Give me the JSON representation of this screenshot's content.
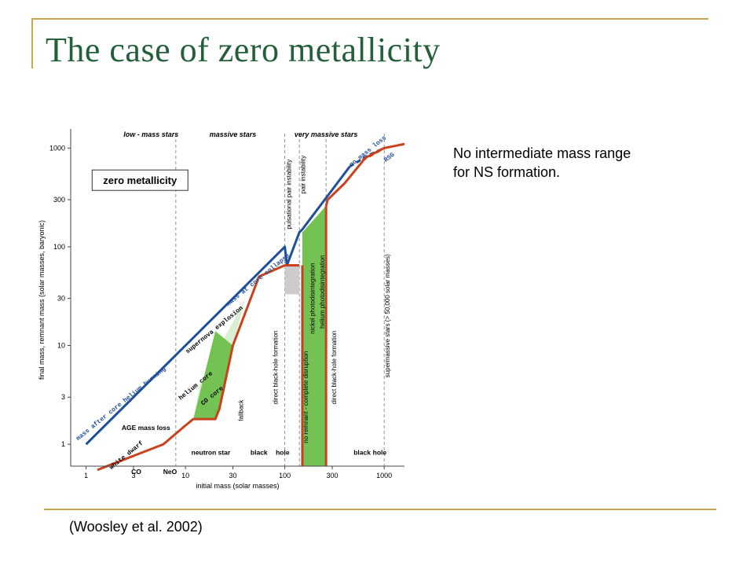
{
  "slide": {
    "title": "The case of zero metallicity",
    "note": [
      "No intermediate mass range",
      "for NS formation."
    ],
    "citation": "(Woosley et al. 2002)"
  },
  "colors": {
    "title": "#23603a",
    "rule": "#c7a84f",
    "blue_curve": "#1f4e9a",
    "red_curve": "#c8421d",
    "green_fill": "#6dbf4b",
    "gray_box": "#cccccc"
  },
  "chart_data": {
    "type": "line",
    "title": "",
    "xlabel": "initial mass (solar masses)",
    "ylabel": "final mass, remnant mass (solar masses, baryonic)",
    "xscale": "log",
    "yscale": "log",
    "xlim": [
      0.7,
      1600
    ],
    "ylim": [
      0.6,
      1400
    ],
    "xticks": [
      1,
      3,
      10,
      30,
      100,
      300,
      1000
    ],
    "yticks": [
      1,
      3,
      10,
      30,
      100,
      300,
      1000
    ],
    "box_label": "zero metallicity",
    "top_labels": [
      {
        "text": "low - mass stars",
        "x": 4.5
      },
      {
        "text": "massive stars",
        "x": 30
      },
      {
        "text": "very massive stars",
        "x": 260
      }
    ],
    "vertical_lines": [
      8,
      100,
      140,
      260,
      1000
    ],
    "series": [
      {
        "key": "final_mass",
        "color": "#1f4e9a",
        "x": [
          1,
          8,
          90,
          100,
          105,
          140,
          150,
          450
        ],
        "y": [
          1,
          8,
          90,
          100,
          65,
          140,
          150,
          650
        ]
      },
      {
        "key": "final_mass_dashed",
        "color": "#1f4e9a",
        "dashed": true,
        "x": [
          450,
          700,
          1000
        ],
        "y": [
          650,
          850,
          1000
        ]
      },
      {
        "key": "rsg_branch",
        "color": "#c8421d",
        "dashed": true,
        "x": [
          600,
          1000
        ],
        "y": [
          750,
          1000
        ]
      },
      {
        "key": "remnant_mass",
        "color": "#c8421d",
        "x": [
          1.3,
          6,
          10,
          12,
          20,
          22,
          30,
          55,
          100,
          105,
          140
        ],
        "y": [
          0.55,
          1.0,
          1.55,
          1.8,
          1.8,
          2.3,
          10,
          50,
          65,
          65,
          65
        ]
      },
      {
        "key": "remnant_mass_upper",
        "color": "#c8421d",
        "x": [
          260,
          270,
          400,
          650,
          1000,
          1600
        ],
        "y": [
          260,
          300,
          440,
          800,
          1000,
          1100
        ]
      }
    ],
    "curve_labels": [
      {
        "text": "mass after core helium burning",
        "x": 2.3,
        "y": 2.5,
        "color": "#1f4e9a"
      },
      {
        "text": "mass at core collapse",
        "x": 55,
        "y": 45,
        "color": "#1f4e9a"
      },
      {
        "text": "no mass loss",
        "x": 700,
        "y": 900,
        "color": "#1f4e9a"
      },
      {
        "text": "RSG",
        "x": 1150,
        "y": 780,
        "color": "#1f4e9a"
      },
      {
        "text": "helium core",
        "x": 13,
        "y": 3.8,
        "color": "#000"
      },
      {
        "text": "CO core",
        "x": 19,
        "y": 3.0,
        "color": "#000"
      },
      {
        "text": "supernova explosion",
        "x": 20,
        "y": 14,
        "color": "#000"
      },
      {
        "text": "white dwarf",
        "x": 2.6,
        "y": 0.75,
        "color": "#000"
      }
    ],
    "region_labels": [
      {
        "text": "AGE mass loss",
        "x": 4,
        "y": 1.4
      },
      {
        "text": "CO",
        "x": 3.2,
        "y": 0.5
      },
      {
        "text": "NeO",
        "x": 7,
        "y": 0.5
      },
      {
        "text": "neutron star",
        "x": 18,
        "y": 0.78
      },
      {
        "text": "black",
        "x": 55,
        "y": 0.78
      },
      {
        "text": "hole",
        "x": 95,
        "y": 0.78
      },
      {
        "text": "black",
        "x": 600,
        "y": 0.78
      },
      {
        "text": "hole",
        "x": 900,
        "y": 0.78
      }
    ],
    "vertical_labels": [
      {
        "text": "fallback",
        "x": 38,
        "y": 2.2
      },
      {
        "text": "direct black-hole formation",
        "x": 85,
        "y": 6
      },
      {
        "text": "pulsational pair instability",
        "x": 115,
        "y": 340
      },
      {
        "text": "pair instability",
        "x": 160,
        "y": 540
      },
      {
        "text": "no remnant - complete disruption",
        "x": 170,
        "y": 3
      },
      {
        "text": "direct black-hole formation",
        "x": 330,
        "y": 6
      },
      {
        "text": "supermassive stars (> 50,000 solar masses)",
        "x": 1130,
        "y": 20
      },
      {
        "text": "nickel photodisintegration",
        "x": 200,
        "y": 30
      },
      {
        "text": "helium photodisintegration",
        "x": 250,
        "y": 35
      }
    ]
  }
}
